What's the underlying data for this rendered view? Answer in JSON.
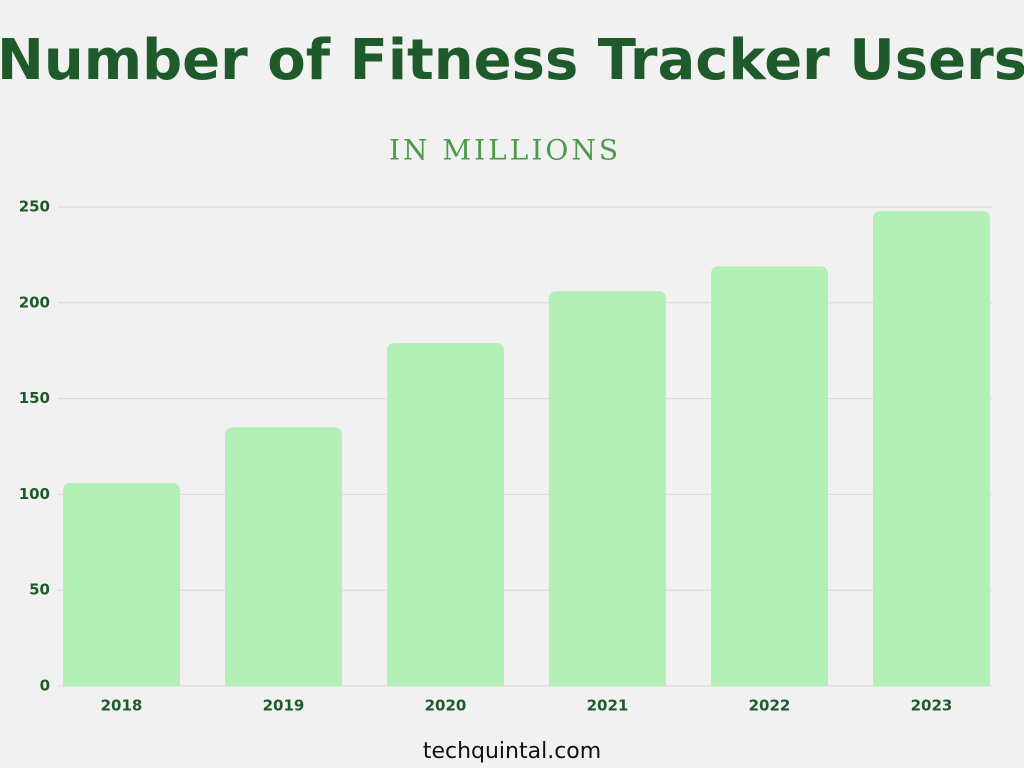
{
  "chart_data": {
    "type": "bar",
    "title": "Number of Fitness Tracker Users",
    "subtitle": "IN MILLIONS",
    "categories": [
      "2018",
      "2019",
      "2020",
      "2021",
      "2022",
      "2023"
    ],
    "values": [
      106,
      135,
      179,
      206,
      219,
      248
    ],
    "color": "#b3f0b5",
    "ylim": [
      0,
      250
    ],
    "yticks": [
      0,
      50,
      100,
      150,
      200,
      250
    ],
    "grid": true,
    "source": "techquintal.com"
  }
}
